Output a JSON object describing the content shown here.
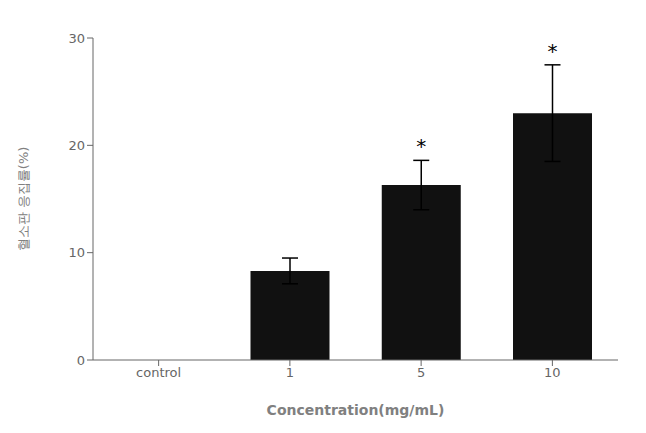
{
  "chart_data": {
    "type": "bar",
    "categories": [
      "control",
      "1",
      "5",
      "10"
    ],
    "values": [
      null,
      8.3,
      16.3,
      23.0
    ],
    "errors": [
      null,
      1.2,
      2.3,
      4.5
    ],
    "color": "#111111",
    "xlabel": "Concentration(mg/mL)",
    "ylabel": "혈소판 응집률(%)",
    "ylim": [
      0,
      30
    ],
    "yticks": [
      0,
      10,
      20,
      30
    ],
    "grid": false,
    "annotations": [
      {
        "category": "5",
        "text": "*"
      },
      {
        "category": "10",
        "text": "*"
      }
    ]
  }
}
